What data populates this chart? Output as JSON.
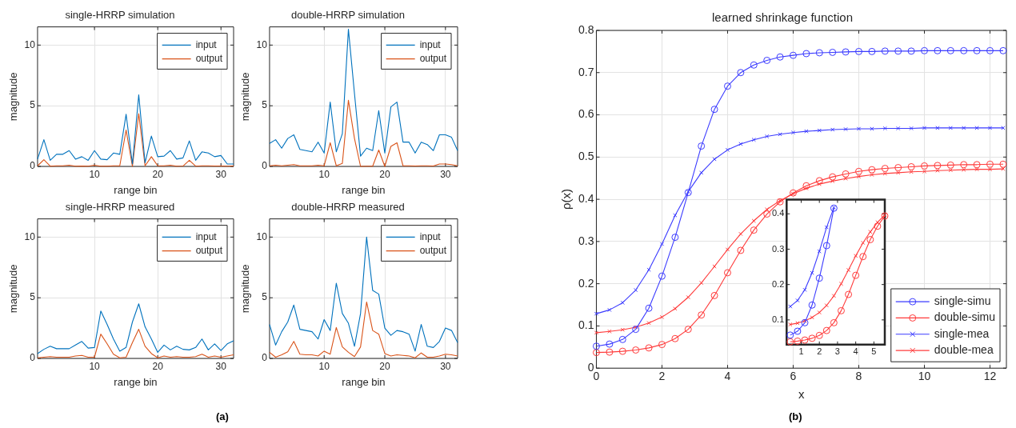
{
  "chart_data": [
    {
      "type": "line",
      "title": "single-HRRP simulation",
      "xlabel": "range bin",
      "ylabel": "magnitude",
      "xlim": [
        1,
        32
      ],
      "xticks": [
        10,
        20,
        30
      ],
      "ylim": [
        0,
        11.5
      ],
      "yticks": [
        0,
        5,
        10
      ],
      "grid": true,
      "legend": "top right",
      "annotations": [
        "(a)"
      ],
      "x": [
        1,
        2,
        3,
        4,
        5,
        6,
        7,
        8,
        9,
        10,
        11,
        12,
        13,
        14,
        15,
        16,
        17,
        18,
        19,
        20,
        21,
        22,
        23,
        24,
        25,
        26,
        27,
        28,
        29,
        30,
        31,
        32
      ],
      "series": [
        {
          "name": "input",
          "color": "#0072bd",
          "values": [
            0.6,
            2.2,
            0.5,
            1.0,
            1.0,
            1.3,
            0.6,
            0.8,
            0.5,
            1.3,
            0.6,
            0.55,
            1.1,
            1.0,
            4.3,
            0.2,
            5.9,
            0.3,
            2.5,
            0.8,
            0.85,
            1.3,
            0.6,
            0.7,
            2.1,
            0.5,
            1.2,
            1.1,
            0.8,
            0.9,
            0.2,
            0.2
          ]
        },
        {
          "name": "output",
          "color": "#d95319",
          "values": [
            0.05,
            0.55,
            0.02,
            0.05,
            0.05,
            0.1,
            0.02,
            0.03,
            0.02,
            0.1,
            0.02,
            0.02,
            0.05,
            0.05,
            3.0,
            0,
            4.35,
            0.05,
            0.8,
            0.05,
            0.05,
            0.1,
            0.02,
            0.03,
            0.5,
            0.02,
            0.05,
            0.05,
            0.03,
            0.03,
            0.02,
            0.03
          ]
        }
      ]
    },
    {
      "type": "line",
      "title": "double-HRRP simulation",
      "xlabel": "range bin",
      "ylabel": "magnitude",
      "xlim": [
        1,
        32
      ],
      "xticks": [
        10,
        20,
        30
      ],
      "ylim": [
        0,
        11.5
      ],
      "yticks": [
        0,
        5,
        10
      ],
      "grid": true,
      "legend": "top right",
      "x": [
        1,
        2,
        3,
        4,
        5,
        6,
        7,
        8,
        9,
        10,
        11,
        12,
        13,
        14,
        15,
        16,
        17,
        18,
        19,
        20,
        21,
        22,
        23,
        24,
        25,
        26,
        27,
        28,
        29,
        30,
        31,
        32
      ],
      "series": [
        {
          "name": "input",
          "color": "#0072bd",
          "values": [
            1.9,
            2.2,
            1.5,
            2.3,
            2.6,
            1.4,
            1.3,
            1.2,
            2.0,
            1.1,
            5.3,
            1.2,
            2.7,
            11.3,
            6.0,
            0.85,
            1.5,
            1.3,
            4.6,
            1.1,
            4.9,
            5.3,
            2.0,
            2.0,
            1.1,
            2.0,
            1.8,
            1.3,
            2.6,
            2.6,
            2.4,
            1.3
          ]
        },
        {
          "name": "output",
          "color": "#d95319",
          "values": [
            0.05,
            0.1,
            0.05,
            0.1,
            0.15,
            0.05,
            0.05,
            0.05,
            0.1,
            0.05,
            1.95,
            0.05,
            0.25,
            5.45,
            2.3,
            0,
            0.02,
            0.02,
            1.35,
            0,
            1.65,
            1.95,
            0.05,
            0.05,
            0.03,
            0.05,
            0.05,
            0.03,
            0.2,
            0.2,
            0.15,
            0.05
          ]
        }
      ]
    },
    {
      "type": "line",
      "title": "single-HRRP measured",
      "xlabel": "range bin",
      "ylabel": "magnitude",
      "xlim": [
        1,
        32
      ],
      "xticks": [
        10,
        20,
        30
      ],
      "ylim": [
        0,
        11.5
      ],
      "yticks": [
        0,
        5,
        10
      ],
      "grid": true,
      "legend": "top right",
      "x": [
        1,
        2,
        3,
        4,
        5,
        6,
        7,
        8,
        9,
        10,
        11,
        12,
        13,
        14,
        15,
        16,
        17,
        18,
        19,
        20,
        21,
        22,
        23,
        24,
        25,
        26,
        27,
        28,
        29,
        30,
        31,
        32
      ],
      "series": [
        {
          "name": "input",
          "color": "#0072bd",
          "values": [
            0.4,
            0.75,
            1.0,
            0.8,
            0.8,
            0.8,
            1.1,
            1.4,
            0.85,
            0.9,
            3.9,
            2.8,
            1.6,
            0.6,
            0.9,
            3.0,
            4.5,
            2.6,
            1.6,
            0.5,
            1.1,
            0.7,
            1.0,
            0.75,
            0.7,
            0.9,
            1.6,
            0.7,
            1.2,
            0.65,
            1.2,
            1.45
          ]
        },
        {
          "name": "output",
          "color": "#d95319",
          "values": [
            0.05,
            0.1,
            0.15,
            0.1,
            0.1,
            0.1,
            0.2,
            0.25,
            0.1,
            0.1,
            2.0,
            1.2,
            0.35,
            0.05,
            0.1,
            1.3,
            2.4,
            1.0,
            0.4,
            0.05,
            0.2,
            0.1,
            0.15,
            0.1,
            0.1,
            0.15,
            0.35,
            0.1,
            0.2,
            0.1,
            0.2,
            0.3
          ]
        }
      ]
    },
    {
      "type": "line",
      "title": "double-HRRP measured",
      "xlabel": "range bin",
      "ylabel": "magnitude",
      "xlim": [
        1,
        32
      ],
      "xticks": [
        10,
        20,
        30
      ],
      "ylim": [
        0,
        11.5
      ],
      "yticks": [
        0,
        5,
        10
      ],
      "grid": true,
      "legend": "top right",
      "x": [
        1,
        2,
        3,
        4,
        5,
        6,
        7,
        8,
        9,
        10,
        11,
        12,
        13,
        14,
        15,
        16,
        17,
        18,
        19,
        20,
        21,
        22,
        23,
        24,
        25,
        26,
        27,
        28,
        29,
        30,
        31,
        32
      ],
      "series": [
        {
          "name": "input",
          "color": "#0072bd",
          "values": [
            2.8,
            1.1,
            2.2,
            3.0,
            4.4,
            2.4,
            2.3,
            2.2,
            1.6,
            3.2,
            2.3,
            6.2,
            3.7,
            2.9,
            1.0,
            3.7,
            10.0,
            5.6,
            5.3,
            2.5,
            1.9,
            2.3,
            2.2,
            2.0,
            0.6,
            2.8,
            1.0,
            0.9,
            1.4,
            2.5,
            2.3,
            1.3
          ]
        },
        {
          "name": "output",
          "color": "#d95319",
          "values": [
            0.5,
            0.1,
            0.3,
            0.55,
            1.4,
            0.35,
            0.3,
            0.3,
            0.2,
            0.6,
            0.35,
            2.55,
            0.95,
            0.5,
            0.15,
            0.95,
            4.65,
            2.3,
            2.0,
            0.4,
            0.2,
            0.3,
            0.25,
            0.2,
            0.05,
            0.45,
            0.1,
            0.1,
            0.2,
            0.35,
            0.3,
            0.2
          ]
        }
      ]
    },
    {
      "type": "line",
      "title": "learned shrinkage function",
      "xlabel": "x",
      "ylabel": "ρ(x)",
      "xlim": [
        0,
        12.5
      ],
      "xticks": [
        0,
        2,
        4,
        6,
        8,
        10,
        12
      ],
      "ylim": [
        0,
        0.8
      ],
      "yticks": [
        0,
        0.1,
        0.2,
        0.3,
        0.4,
        0.5,
        0.6,
        0.7,
        0.8
      ],
      "grid": true,
      "legend": "bottom right",
      "annotations": [
        "(b)"
      ],
      "x": [
        0,
        0.4,
        0.8,
        1.2,
        1.6,
        2,
        2.4,
        2.8,
        3.2,
        3.6,
        4,
        4.4,
        4.8,
        5.2,
        5.6,
        6,
        6.4,
        6.8,
        7.2,
        7.6,
        8,
        8.4,
        8.8,
        9.2,
        9.6,
        10,
        10.4,
        10.8,
        11.2,
        11.6,
        12,
        12.4
      ],
      "series": [
        {
          "name": "single-simu",
          "color": "#3b3bff",
          "marker": "circle",
          "values": [
            0.052,
            0.057,
            0.068,
            0.092,
            0.142,
            0.218,
            0.31,
            0.416,
            0.526,
            0.613,
            0.668,
            0.7,
            0.718,
            0.729,
            0.737,
            0.741,
            0.745,
            0.747,
            0.748,
            0.749,
            0.75,
            0.75,
            0.751,
            0.751,
            0.751,
            0.752,
            0.752,
            0.752,
            0.752,
            0.752,
            0.752,
            0.752
          ]
        },
        {
          "name": "double-simu",
          "color": "#ff3b3b",
          "marker": "circle",
          "values": [
            0.037,
            0.038,
            0.04,
            0.043,
            0.048,
            0.056,
            0.07,
            0.092,
            0.126,
            0.172,
            0.226,
            0.279,
            0.327,
            0.365,
            0.394,
            0.415,
            0.432,
            0.444,
            0.453,
            0.46,
            0.466,
            0.47,
            0.473,
            0.475,
            0.477,
            0.479,
            0.48,
            0.481,
            0.482,
            0.482,
            0.483,
            0.483
          ]
        },
        {
          "name": "single-mea",
          "color": "#3b3bff",
          "marker": "cross",
          "values": [
            0.129,
            0.138,
            0.155,
            0.185,
            0.233,
            0.294,
            0.362,
            0.418,
            0.463,
            0.495,
            0.517,
            0.531,
            0.541,
            0.549,
            0.554,
            0.558,
            0.561,
            0.563,
            0.565,
            0.566,
            0.567,
            0.567,
            0.568,
            0.568,
            0.568,
            0.569,
            0.569,
            0.569,
            0.569,
            0.569,
            0.569,
            0.569
          ]
        },
        {
          "name": "double-mea",
          "color": "#ff3b3b",
          "marker": "cross",
          "values": [
            0.084,
            0.087,
            0.091,
            0.097,
            0.107,
            0.121,
            0.141,
            0.168,
            0.202,
            0.241,
            0.281,
            0.318,
            0.349,
            0.376,
            0.397,
            0.413,
            0.426,
            0.436,
            0.443,
            0.449,
            0.454,
            0.458,
            0.461,
            0.463,
            0.465,
            0.466,
            0.468,
            0.469,
            0.47,
            0.471,
            0.471,
            0.472
          ]
        }
      ]
    },
    {
      "type": "line",
      "xlim": [
        0.2,
        5.6
      ],
      "xticks": [
        1,
        2,
        3,
        4,
        5
      ],
      "ylim": [
        0.03,
        0.44
      ],
      "yticks": [
        0.1,
        0.2,
        0.3,
        0.4
      ],
      "series": [
        {
          "color": "#3b3bff",
          "marker": "circle",
          "x": [
            0.4,
            0.8,
            1.2,
            1.6,
            2,
            2.4,
            2.8
          ],
          "values": [
            0.057,
            0.068,
            0.092,
            0.142,
            0.218,
            0.31,
            0.416
          ]
        },
        {
          "color": "#ff3b3b",
          "marker": "circle",
          "x": [
            0.4,
            0.8,
            1.2,
            1.6,
            2,
            2.4,
            2.8,
            3.2,
            3.6,
            4,
            4.4,
            4.8,
            5.2,
            5.6
          ],
          "values": [
            0.038,
            0.04,
            0.043,
            0.048,
            0.056,
            0.07,
            0.092,
            0.126,
            0.172,
            0.226,
            0.279,
            0.327,
            0.365,
            0.394
          ]
        },
        {
          "color": "#3b3bff",
          "marker": "cross",
          "x": [
            0.4,
            0.8,
            1.2,
            1.6,
            2,
            2.4,
            2.8
          ],
          "values": [
            0.138,
            0.155,
            0.185,
            0.233,
            0.294,
            0.362,
            0.418
          ]
        },
        {
          "color": "#ff3b3b",
          "marker": "cross",
          "x": [
            0.4,
            0.8,
            1.2,
            1.6,
            2,
            2.4,
            2.8,
            3.2,
            3.6,
            4,
            4.4,
            4.8,
            5.2,
            5.6
          ],
          "values": [
            0.087,
            0.091,
            0.097,
            0.107,
            0.121,
            0.141,
            0.168,
            0.202,
            0.241,
            0.281,
            0.318,
            0.349,
            0.376,
            0.397
          ]
        }
      ]
    }
  ]
}
